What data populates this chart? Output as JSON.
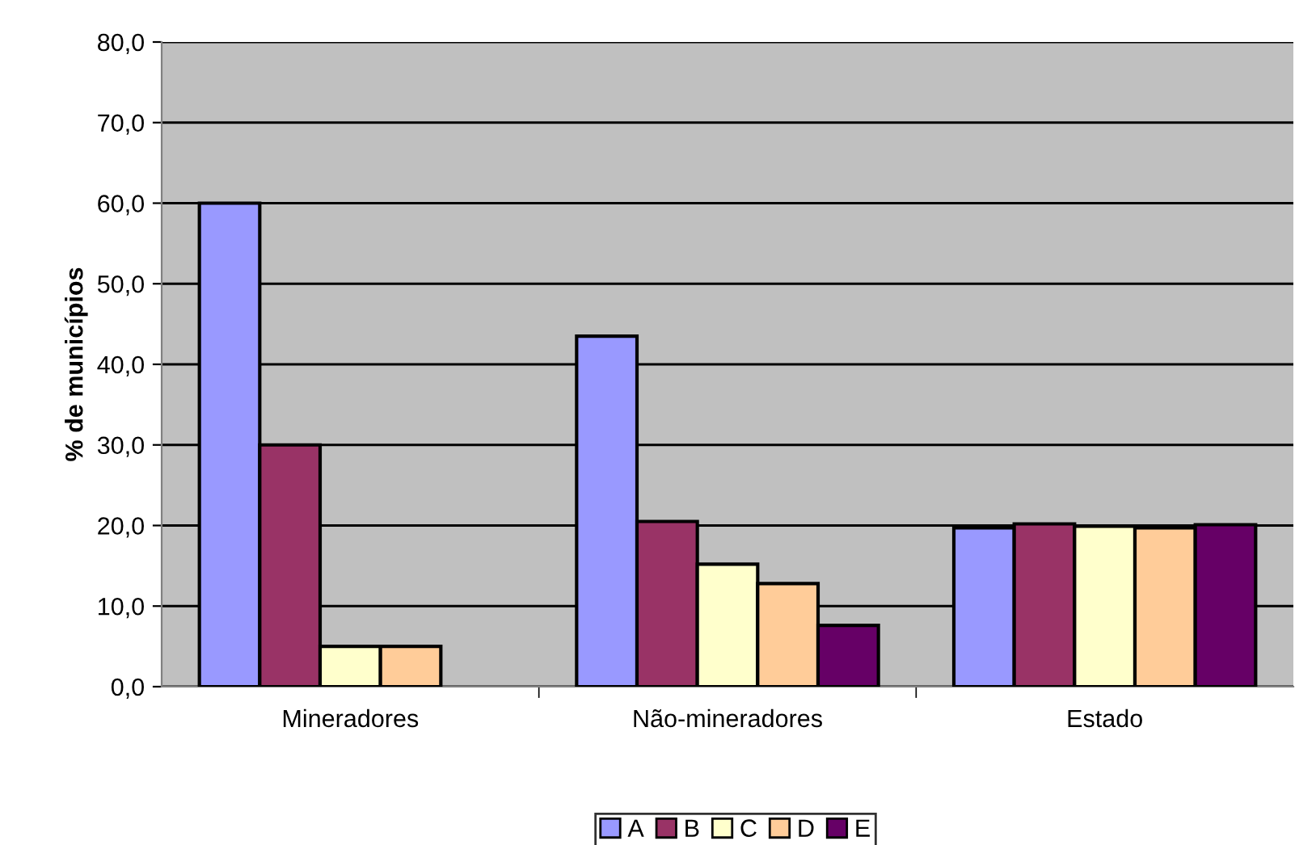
{
  "chart_data": {
    "type": "bar",
    "ylabel": "% de municípios",
    "categories": [
      "Mineradores",
      "Não-mineradores",
      "Estado"
    ],
    "series": [
      {
        "name": "A",
        "color": "#9999ff",
        "values": [
          60.0,
          43.5,
          19.7
        ]
      },
      {
        "name": "B",
        "color": "#993366",
        "values": [
          30.0,
          20.5,
          20.2
        ]
      },
      {
        "name": "C",
        "color": "#ffffcc",
        "values": [
          5.0,
          15.2,
          19.9
        ]
      },
      {
        "name": "D",
        "color": "#ffcc99",
        "values": [
          5.0,
          12.8,
          19.7
        ]
      },
      {
        "name": "E",
        "color": "#660066",
        "values": [
          null,
          7.6,
          20.1
        ]
      }
    ],
    "ylim": [
      0,
      80
    ],
    "yticks": [
      {
        "value": 0,
        "label": "0,0"
      },
      {
        "value": 10,
        "label": "10,0"
      },
      {
        "value": 20,
        "label": "20,0"
      },
      {
        "value": 30,
        "label": "30,0"
      },
      {
        "value": 40,
        "label": "40,0"
      },
      {
        "value": 50,
        "label": "50,0"
      },
      {
        "value": 60,
        "label": "60,0"
      },
      {
        "value": 70,
        "label": "70,0"
      },
      {
        "value": 80,
        "label": "80,0"
      }
    ],
    "grid": "y",
    "legend": "bottom"
  }
}
